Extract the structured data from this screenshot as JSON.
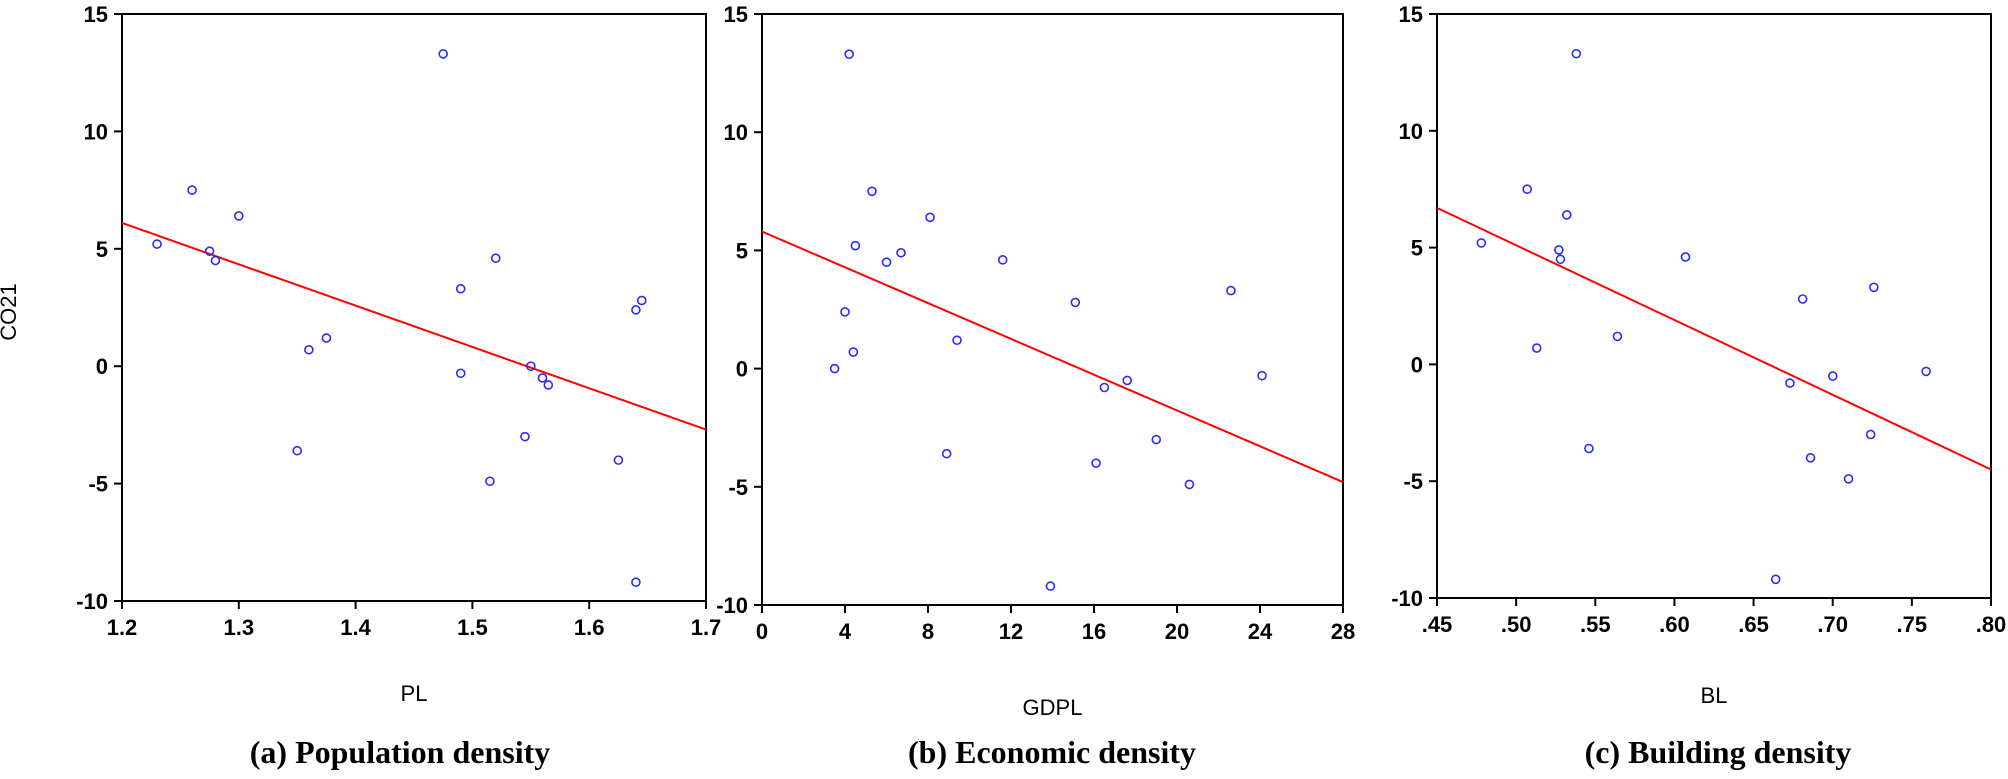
{
  "colors": {
    "points": "#2b2bff",
    "fit_line": "#ff0000",
    "axes": "#000000",
    "background": "#ffffff"
  },
  "chart_data": [
    {
      "type": "scatter",
      "caption": "(a) Population density",
      "xlabel": "PL",
      "ylabel": "CO21",
      "xlim": [
        1.2,
        1.7
      ],
      "ylim": [
        -10,
        15
      ],
      "x_ticks": [
        "1.2",
        "1.3",
        "1.4",
        "1.5",
        "1.6",
        "1.7"
      ],
      "x_tick_values": [
        1.2,
        1.3,
        1.4,
        1.5,
        1.6,
        1.7
      ],
      "y_ticks": [
        "-10",
        "-5",
        "0",
        "5",
        "10",
        "15"
      ],
      "y_tick_values": [
        -10,
        -5,
        0,
        5,
        10,
        15
      ],
      "points": [
        {
          "x": 1.23,
          "y": 5.2
        },
        {
          "x": 1.26,
          "y": 7.5
        },
        {
          "x": 1.275,
          "y": 4.9
        },
        {
          "x": 1.28,
          "y": 4.5
        },
        {
          "x": 1.3,
          "y": 6.4
        },
        {
          "x": 1.35,
          "y": -3.6
        },
        {
          "x": 1.36,
          "y": 0.7
        },
        {
          "x": 1.375,
          "y": 1.2
        },
        {
          "x": 1.475,
          "y": 13.3
        },
        {
          "x": 1.49,
          "y": 3.3
        },
        {
          "x": 1.49,
          "y": -0.3
        },
        {
          "x": 1.515,
          "y": -4.9
        },
        {
          "x": 1.52,
          "y": 4.6
        },
        {
          "x": 1.545,
          "y": -3.0
        },
        {
          "x": 1.55,
          "y": 0.0
        },
        {
          "x": 1.56,
          "y": -0.5
        },
        {
          "x": 1.565,
          "y": -0.8
        },
        {
          "x": 1.625,
          "y": -4.0
        },
        {
          "x": 1.64,
          "y": 2.4
        },
        {
          "x": 1.645,
          "y": 2.8
        },
        {
          "x": 1.64,
          "y": -9.2
        }
      ],
      "fit_line": {
        "x": [
          1.2,
          1.7
        ],
        "y": [
          6.1,
          -2.7
        ]
      },
      "grid": false
    },
    {
      "type": "scatter",
      "caption": "(b) Economic density",
      "xlabel": "GDPL",
      "ylabel": "",
      "xlim": [
        0,
        28
      ],
      "ylim": [
        -10,
        15
      ],
      "x_ticks": [
        "0",
        "4",
        "8",
        "12",
        "16",
        "20",
        "24",
        "28"
      ],
      "x_tick_values": [
        0,
        4,
        8,
        12,
        16,
        20,
        24,
        28
      ],
      "y_ticks": [
        "-10",
        "-5",
        "0",
        "5",
        "10",
        "15"
      ],
      "y_tick_values": [
        -10,
        -5,
        0,
        5,
        10,
        15
      ],
      "points": [
        {
          "x": 3.5,
          "y": 0.0
        },
        {
          "x": 4.0,
          "y": 2.4
        },
        {
          "x": 4.2,
          "y": 13.3
        },
        {
          "x": 4.4,
          "y": 0.7
        },
        {
          "x": 4.5,
          "y": 5.2
        },
        {
          "x": 5.3,
          "y": 7.5
        },
        {
          "x": 6.0,
          "y": 4.5
        },
        {
          "x": 6.7,
          "y": 4.9
        },
        {
          "x": 8.1,
          "y": 6.4
        },
        {
          "x": 8.9,
          "y": -3.6
        },
        {
          "x": 9.4,
          "y": 1.2
        },
        {
          "x": 11.6,
          "y": 4.6
        },
        {
          "x": 13.9,
          "y": -9.2
        },
        {
          "x": 15.1,
          "y": 2.8
        },
        {
          "x": 16.1,
          "y": -4.0
        },
        {
          "x": 16.5,
          "y": -0.8
        },
        {
          "x": 17.6,
          "y": -0.5
        },
        {
          "x": 19.0,
          "y": -3.0
        },
        {
          "x": 20.6,
          "y": -4.9
        },
        {
          "x": 22.6,
          "y": 3.3
        },
        {
          "x": 24.1,
          "y": -0.3
        }
      ],
      "fit_line": {
        "x": [
          0,
          28
        ],
        "y": [
          5.8,
          -4.8
        ]
      },
      "grid": false
    },
    {
      "type": "scatter",
      "caption": "(c) Building density",
      "xlabel": "BL",
      "ylabel": "",
      "xlim": [
        0.45,
        0.8
      ],
      "ylim": [
        -10,
        15
      ],
      "x_ticks": [
        ".45",
        ".50",
        ".55",
        ".60",
        ".65",
        ".70",
        ".75",
        ".80"
      ],
      "x_tick_values": [
        0.45,
        0.5,
        0.55,
        0.6,
        0.65,
        0.7,
        0.75,
        0.8
      ],
      "y_ticks": [
        "-10",
        "-5",
        "0",
        "5",
        "10",
        "15"
      ],
      "y_tick_values": [
        -10,
        -5,
        0,
        5,
        10,
        15
      ],
      "points": [
        {
          "x": 0.478,
          "y": 5.2
        },
        {
          "x": 0.507,
          "y": 7.5
        },
        {
          "x": 0.513,
          "y": 0.7
        },
        {
          "x": 0.527,
          "y": 4.9
        },
        {
          "x": 0.528,
          "y": 4.5
        },
        {
          "x": 0.532,
          "y": 6.4
        },
        {
          "x": 0.538,
          "y": 13.3
        },
        {
          "x": 0.546,
          "y": -3.6
        },
        {
          "x": 0.564,
          "y": 1.2
        },
        {
          "x": 0.607,
          "y": 4.6
        },
        {
          "x": 0.664,
          "y": -9.2
        },
        {
          "x": 0.673,
          "y": -0.8
        },
        {
          "x": 0.681,
          "y": 2.8
        },
        {
          "x": 0.686,
          "y": -4.0
        },
        {
          "x": 0.7,
          "y": -0.5
        },
        {
          "x": 0.71,
          "y": -4.9
        },
        {
          "x": 0.724,
          "y": -3.0
        },
        {
          "x": 0.726,
          "y": 3.3
        },
        {
          "x": 0.759,
          "y": -0.3
        }
      ],
      "fit_line": {
        "x": [
          0.45,
          0.8
        ],
        "y": [
          6.7,
          -4.5
        ]
      },
      "grid": false
    }
  ]
}
